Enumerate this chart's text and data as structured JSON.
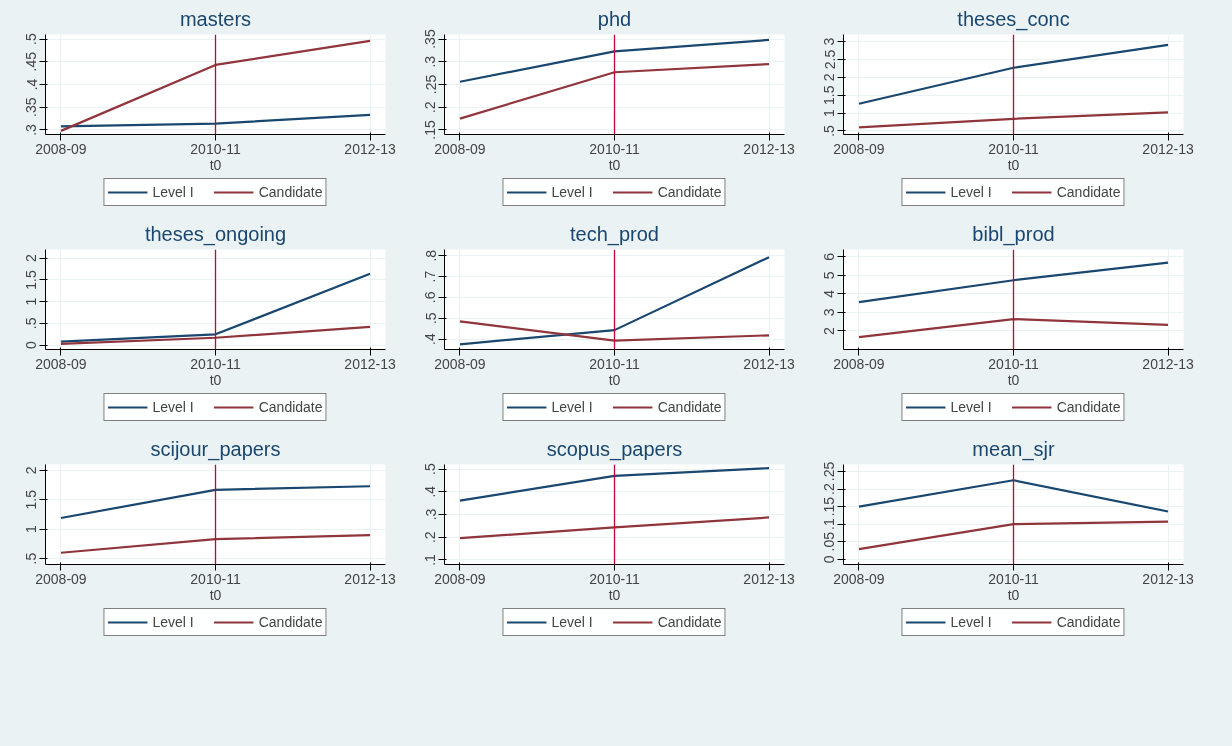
{
  "chart_data": [
    {
      "type": "line",
      "title": "masters",
      "xlabel": "t0",
      "categories": [
        "2008-09",
        "2010-11",
        "2012-13"
      ],
      "ylim": [
        0.29,
        0.51
      ],
      "yticks": [
        {
          "value": 0.3,
          "label": ".3"
        },
        {
          "value": 0.35,
          "label": ".35"
        },
        {
          "value": 0.4,
          "label": ".4"
        },
        {
          "value": 0.45,
          "label": ".45"
        },
        {
          "value": 0.5,
          "label": ".5"
        }
      ],
      "grid": true,
      "legend": "bottom",
      "ref_lines": [
        {
          "axis": "x",
          "value": "2010-11",
          "color": "#c10534"
        }
      ],
      "series": [
        {
          "name": "Level I",
          "color": "#1a476f",
          "values": [
            0.308,
            0.314,
            0.333
          ]
        },
        {
          "name": "Candidate",
          "color": "#90353b",
          "values": [
            0.298,
            0.443,
            0.496
          ]
        }
      ]
    },
    {
      "type": "line",
      "title": "phd",
      "xlabel": "t0",
      "categories": [
        "2008-09",
        "2010-11",
        "2012-13"
      ],
      "ylim": [
        0.14,
        0.36
      ],
      "yticks": [
        {
          "value": 0.15,
          "label": ".15"
        },
        {
          "value": 0.2,
          "label": ".2"
        },
        {
          "value": 0.25,
          "label": ".25"
        },
        {
          "value": 0.3,
          "label": ".3"
        },
        {
          "value": 0.35,
          "label": ".35"
        }
      ],
      "grid": true,
      "legend": "bottom",
      "ref_lines": [
        {
          "axis": "x",
          "value": "2010-11",
          "color": "#c10534"
        }
      ],
      "series": [
        {
          "name": "Level I",
          "color": "#1a476f",
          "values": [
            0.256,
            0.323,
            0.348
          ]
        },
        {
          "name": "Candidate",
          "color": "#90353b",
          "values": [
            0.175,
            0.277,
            0.295
          ]
        }
      ]
    },
    {
      "type": "line",
      "title": "theses_conc",
      "xlabel": "t0",
      "categories": [
        "2008-09",
        "2010-11",
        "2012-13"
      ],
      "ylim": [
        0.4,
        3.2
      ],
      "yticks": [
        {
          "value": 0.5,
          "label": ".5"
        },
        1,
        1.5,
        2,
        2.5,
        3
      ],
      "grid": true,
      "legend": "bottom",
      "ref_lines": [
        {
          "axis": "x",
          "value": "2010-11",
          "color": "#c10534"
        }
      ],
      "series": [
        {
          "name": "Level I",
          "color": "#1a476f",
          "values": [
            1.26,
            2.27,
            2.91
          ]
        },
        {
          "name": "Candidate",
          "color": "#90353b",
          "values": [
            0.6,
            0.84,
            1.02
          ]
        }
      ]
    },
    {
      "type": "line",
      "title": "theses_ongoing",
      "xlabel": "t0",
      "categories": [
        "2008-09",
        "2010-11",
        "2012-13"
      ],
      "ylim": [
        -0.1,
        2.2
      ],
      "yticks": [
        0,
        {
          "value": 0.5,
          "label": ".5"
        },
        1,
        1.5,
        2
      ],
      "grid": true,
      "legend": "bottom",
      "ref_lines": [
        {
          "axis": "x",
          "value": "2010-11",
          "color": "#c10534"
        }
      ],
      "series": [
        {
          "name": "Level I",
          "color": "#1a476f",
          "values": [
            0.08,
            0.25,
            1.64
          ]
        },
        {
          "name": "Candidate",
          "color": "#90353b",
          "values": [
            0.03,
            0.17,
            0.42
          ]
        }
      ]
    },
    {
      "type": "line",
      "title": "tech_prod",
      "xlabel": "t0",
      "categories": [
        "2008-09",
        "2010-11",
        "2012-13"
      ],
      "ylim": [
        0.35,
        0.83
      ],
      "yticks": [
        {
          "value": 0.4,
          "label": ".4"
        },
        {
          "value": 0.5,
          "label": ".5"
        },
        {
          "value": 0.6,
          "label": ".6"
        },
        {
          "value": 0.7,
          "label": ".7"
        },
        {
          "value": 0.8,
          "label": ".8"
        }
      ],
      "grid": true,
      "legend": "bottom",
      "ref_lines": [
        {
          "axis": "x",
          "value": "2010-11",
          "color": "#c10534"
        }
      ],
      "series": [
        {
          "name": "Level I",
          "color": "#1a476f",
          "values": [
            0.375,
            0.443,
            0.793
          ]
        },
        {
          "name": "Candidate",
          "color": "#90353b",
          "values": [
            0.485,
            0.393,
            0.418
          ]
        }
      ]
    },
    {
      "type": "line",
      "title": "bibl_prod",
      "xlabel": "t0",
      "categories": [
        "2008-09",
        "2010-11",
        "2012-13"
      ],
      "ylim": [
        1.0,
        6.4
      ],
      "yticks": [
        2,
        3,
        4,
        5,
        6
      ],
      "grid": true,
      "legend": "bottom",
      "ref_lines": [
        {
          "axis": "x",
          "value": "2010-11",
          "color": "#c10534"
        }
      ],
      "series": [
        {
          "name": "Level I",
          "color": "#1a476f",
          "values": [
            3.56,
            4.74,
            5.69
          ]
        },
        {
          "name": "Candidate",
          "color": "#90353b",
          "values": [
            1.67,
            2.64,
            2.33
          ]
        }
      ]
    },
    {
      "type": "line",
      "title": "scijour_papers",
      "xlabel": "t0",
      "categories": [
        "2008-09",
        "2010-11",
        "2012-13"
      ],
      "ylim": [
        0.4,
        2.1
      ],
      "yticks": [
        {
          "value": 0.5,
          "label": ".5"
        },
        1,
        1.5,
        2
      ],
      "grid": true,
      "legend": "bottom",
      "ref_lines": [
        {
          "axis": "x",
          "value": "2010-11",
          "color": "#c10534"
        }
      ],
      "series": [
        {
          "name": "Level I",
          "color": "#1a476f",
          "values": [
            1.19,
            1.67,
            1.73
          ]
        },
        {
          "name": "Candidate",
          "color": "#90353b",
          "values": [
            0.6,
            0.83,
            0.9
          ]
        }
      ]
    },
    {
      "type": "line",
      "title": "scopus_papers",
      "xlabel": "t0",
      "categories": [
        "2008-09",
        "2010-11",
        "2012-13"
      ],
      "ylim": [
        0.08,
        0.52
      ],
      "yticks": [
        {
          "value": 0.1,
          "label": ".1"
        },
        {
          "value": 0.2,
          "label": ".2"
        },
        {
          "value": 0.3,
          "label": ".3"
        },
        {
          "value": 0.4,
          "label": ".4"
        },
        {
          "value": 0.5,
          "label": ".5"
        }
      ],
      "grid": true,
      "legend": "bottom",
      "ref_lines": [
        {
          "axis": "x",
          "value": "2010-11",
          "color": "#c10534"
        }
      ],
      "series": [
        {
          "name": "Level I",
          "color": "#1a476f",
          "values": [
            0.361,
            0.47,
            0.504
          ]
        },
        {
          "name": "Candidate",
          "color": "#90353b",
          "values": [
            0.196,
            0.243,
            0.287
          ]
        }
      ]
    },
    {
      "type": "line",
      "title": "mean_sjr",
      "xlabel": "t0",
      "categories": [
        "2008-09",
        "2010-11",
        "2012-13"
      ],
      "ylim": [
        -0.015,
        0.27
      ],
      "yticks": [
        0,
        {
          "value": 0.05,
          "label": ".05"
        },
        {
          "value": 0.1,
          "label": ".1"
        },
        {
          "value": 0.15,
          "label": ".15"
        },
        {
          "value": 0.2,
          "label": ".2"
        },
        {
          "value": 0.25,
          "label": ".25"
        }
      ],
      "grid": true,
      "legend": "bottom",
      "ref_lines": [
        {
          "axis": "x",
          "value": "2010-11",
          "color": "#c10534"
        }
      ],
      "series": [
        {
          "name": "Level I",
          "color": "#1a476f",
          "values": [
            0.15,
            0.225,
            0.136
          ]
        },
        {
          "name": "Candidate",
          "color": "#90353b",
          "values": [
            0.029,
            0.1,
            0.107
          ]
        }
      ]
    }
  ]
}
